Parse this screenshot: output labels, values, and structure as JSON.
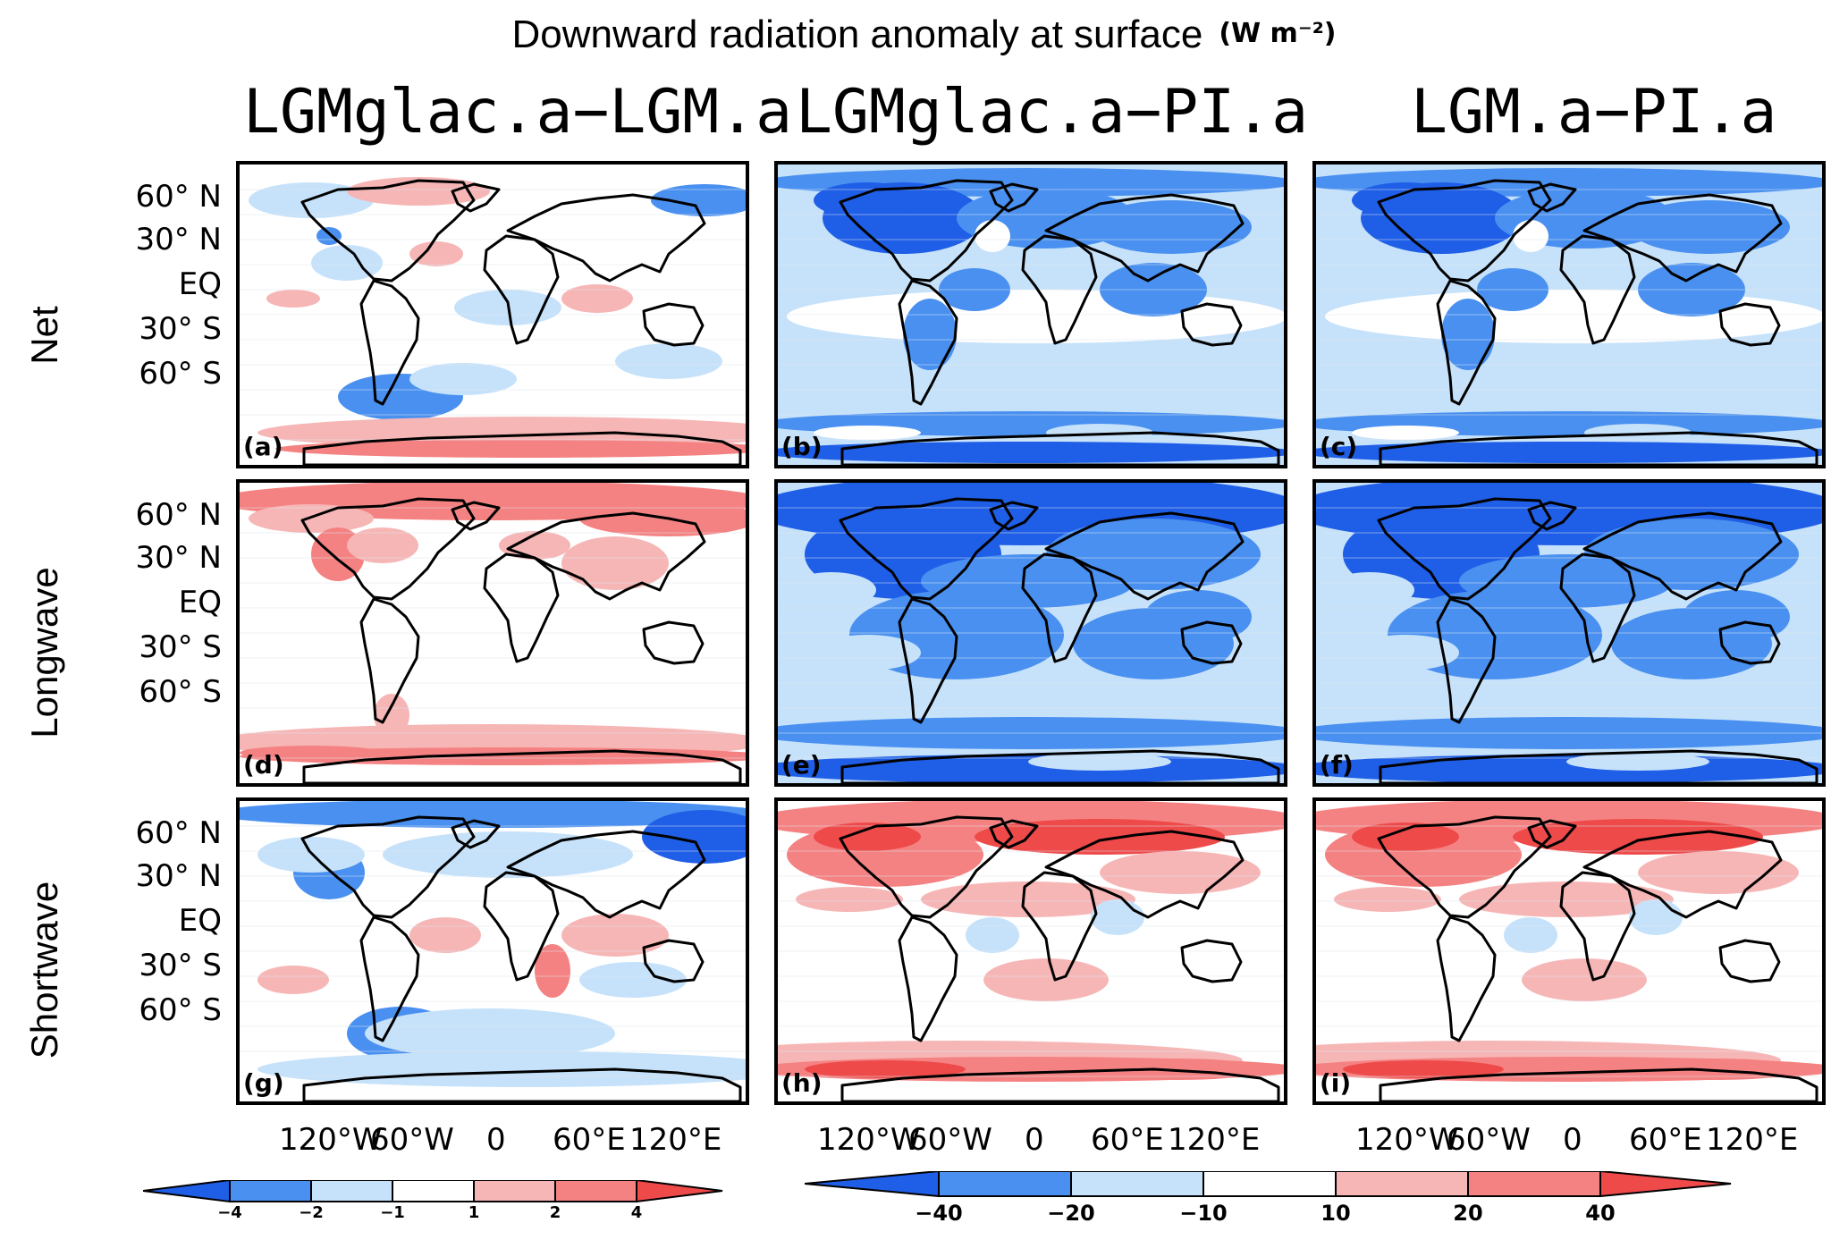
{
  "figure": {
    "title": "Downward radiation anomaly at surface",
    "unit": "(W m⁻²)",
    "column_titles": [
      "LGMglac.a−LGM.a",
      "LGMglac.a−PI.a",
      "LGM.a−PI.a"
    ],
    "row_labels": [
      "Net",
      "Longwave",
      "Shortwave"
    ],
    "panels": [
      {
        "label": "(a)",
        "row": 0,
        "col": 0,
        "scheme": "small-net"
      },
      {
        "label": "(b)",
        "row": 0,
        "col": 1,
        "scheme": "blue-mid"
      },
      {
        "label": "(c)",
        "row": 0,
        "col": 2,
        "scheme": "blue-mid"
      },
      {
        "label": "(d)",
        "row": 1,
        "col": 0,
        "scheme": "red-light"
      },
      {
        "label": "(e)",
        "row": 1,
        "col": 1,
        "scheme": "blue-strong"
      },
      {
        "label": "(f)",
        "row": 1,
        "col": 2,
        "scheme": "blue-strong"
      },
      {
        "label": "(g)",
        "row": 2,
        "col": 0,
        "scheme": "small-sw"
      },
      {
        "label": "(h)",
        "row": 2,
        "col": 1,
        "scheme": "red-mid"
      },
      {
        "label": "(i)",
        "row": 2,
        "col": 2,
        "scheme": "red-mid"
      }
    ],
    "lat_labels": [
      "60° N",
      "30° N",
      "EQ",
      "30° S",
      "60° S"
    ],
    "lon_labels": [
      "120°W",
      "60°W",
      "0",
      "60°E",
      "120°E"
    ],
    "colorbar_small": {
      "ticks": [
        "−4",
        "−2",
        "−1",
        "1",
        "2",
        "4"
      ]
    },
    "colorbar_large": {
      "ticks": [
        "−40",
        "−20",
        "−10",
        "10",
        "20",
        "40"
      ]
    },
    "colors": {
      "dark_blue": "#1f5ee6",
      "mid_blue": "#4a90f0",
      "light_blue": "#c6e2fa",
      "white": "#ffffff",
      "light_red": "#f7b6b6",
      "mid_red": "#f58282",
      "dark_red": "#ee4a4a"
    }
  }
}
